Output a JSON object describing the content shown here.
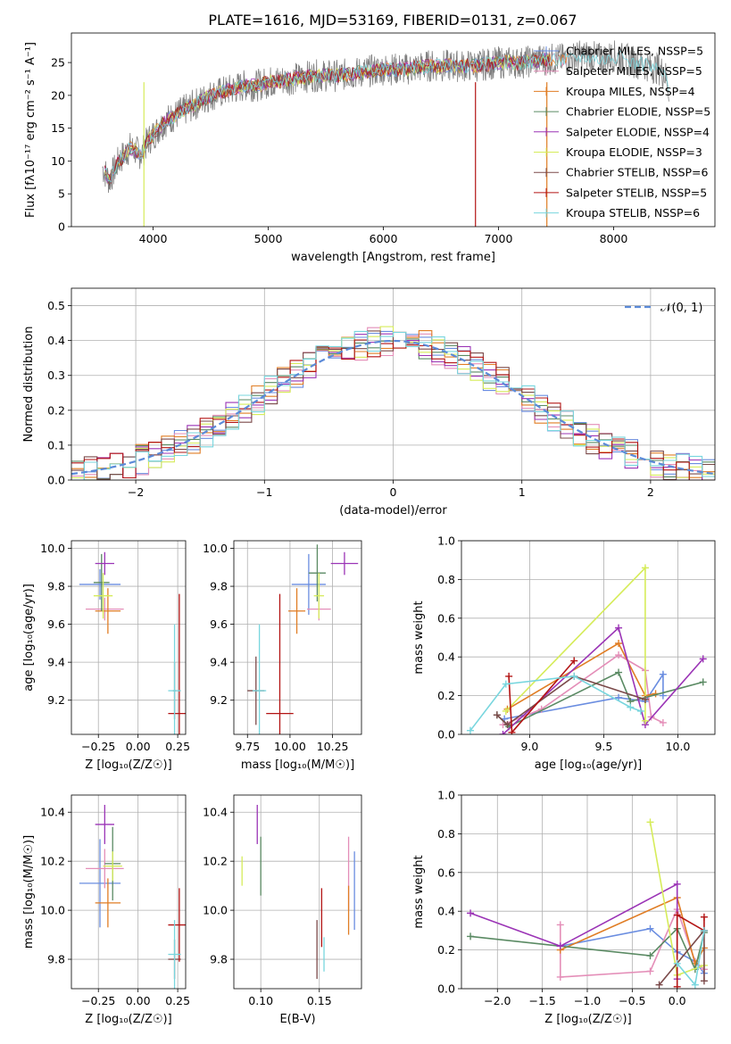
{
  "figure": {
    "title": "PLATE=1616, MJD=53169, FIBERID=0131, z=0.067"
  },
  "colors": [
    "#6a8de0",
    "#e48eb8",
    "#e07d24",
    "#5a8a63",
    "#9b34b6",
    "#d6ec5a",
    "#7b4a4a",
    "#b31414",
    "#78d6de"
  ],
  "chart_data": [
    {
      "id": "spectrum",
      "type": "line",
      "xlabel": "wavelength [Angstrom, rest frame]",
      "ylabel": "Flux [fλ10⁻¹⁷ erg cm⁻² s⁻¹ A⁻¹]",
      "xlim": [
        3290,
        8880
      ],
      "ylim": [
        0,
        29.5
      ],
      "xticks": [
        4000,
        5000,
        6000,
        7000,
        8000
      ],
      "yticks": [
        0,
        5,
        10,
        15,
        20,
        25
      ],
      "grid": false,
      "legend": "right",
      "data_series": {
        "name": "data",
        "x": [
          3560,
          3620,
          3700,
          3800,
          3900,
          3950,
          4000,
          4100,
          4200,
          4300,
          4400,
          4500,
          4600,
          4700,
          4800,
          4900,
          5000,
          5200,
          5400,
          5600,
          5800,
          6000,
          6200,
          6400,
          6600,
          6800,
          7000,
          7200,
          7400,
          7500,
          7600,
          7700,
          7800,
          7900,
          8000,
          8100,
          8200,
          8300,
          8400,
          8450,
          8480
        ],
        "y": [
          9,
          7,
          10,
          12,
          11,
          13,
          14,
          16,
          17,
          18,
          19,
          20,
          20.5,
          21,
          21.5,
          21.5,
          22,
          22.5,
          23,
          23,
          23.5,
          24,
          24,
          24.5,
          24.5,
          24.5,
          25,
          25,
          25.5,
          25.5,
          25.5,
          26,
          26,
          25.5,
          26,
          25.5,
          25,
          24.5,
          24,
          23,
          21
        ]
      },
      "series": [
        {
          "name": "Chabrier MILES, NSSP=5"
        },
        {
          "name": "Salpeter MILES, NSSP=5"
        },
        {
          "name": "Kroupa MILES, NSSP=4"
        },
        {
          "name": "Chabrier ELODIE, NSSP=5"
        },
        {
          "name": "Salpeter ELODIE, NSSP=4"
        },
        {
          "name": "Kroupa ELODIE, NSSP=3"
        },
        {
          "name": "Chabrier STELIB, NSSP=6"
        },
        {
          "name": "Salpeter STELIB, NSSP=5"
        },
        {
          "name": "Kroupa STELIB, NSSP=6"
        }
      ]
    },
    {
      "id": "residuals",
      "type": "histogram",
      "xlabel": "(data-model)/error",
      "ylabel": "Normed distribution",
      "xlim": [
        -2.5,
        2.5
      ],
      "ylim": [
        0,
        0.55
      ],
      "xticks": [
        -2,
        -1,
        0,
        1,
        2
      ],
      "yticks": [
        0.0,
        0.1,
        0.2,
        0.3,
        0.4,
        0.5
      ],
      "grid": true,
      "legend": "top-right",
      "reference": {
        "name": "𝒩(0, 1)",
        "mean": 0,
        "sd": 1
      },
      "bin_width": 0.1
    },
    {
      "id": "age_vs_Z",
      "type": "errorbar",
      "xlabel": "Z [log₁₀(Z/Z☉)]",
      "ylabel": "age  [log₁₀(age/yr)]",
      "xlim": [
        -0.42,
        0.3
      ],
      "ylim": [
        9.02,
        10.04
      ],
      "xticks": [
        -0.25,
        0.0,
        0.25
      ],
      "yticks": [
        9.2,
        9.4,
        9.6,
        9.8,
        10.0
      ],
      "grid": true,
      "points": [
        {
          "x": -0.24,
          "y": 9.81,
          "xerr": 0.13,
          "yerr": 0.08
        },
        {
          "x": -0.21,
          "y": 9.68,
          "xerr": 0.12,
          "yerr": 0.06
        },
        {
          "x": -0.19,
          "y": 9.67,
          "xerr": 0.08,
          "yerr": 0.12
        },
        {
          "x": -0.23,
          "y": 9.82,
          "xerr": 0.05,
          "yerr": 0.15
        },
        {
          "x": -0.21,
          "y": 9.92,
          "xerr": 0.06,
          "yerr": 0.06
        },
        {
          "x": -0.22,
          "y": 9.75,
          "xerr": 0.06,
          "yerr": 0.12
        },
        {
          "x": 0.23,
          "y": 9.25,
          "xerr": 0.01,
          "yerr": 0.15
        },
        {
          "x": 0.26,
          "y": 9.13,
          "xerr": 0.07,
          "yerr": 0.63
        },
        {
          "x": 0.23,
          "y": 9.25,
          "xerr": 0.04,
          "yerr": 0.35
        }
      ]
    },
    {
      "id": "age_vs_mass",
      "type": "errorbar",
      "xlabel": "mass [log₁₀(M/M☉)]",
      "ylabel": "",
      "xlim": [
        9.67,
        10.42
      ],
      "ylim": [
        9.02,
        10.04
      ],
      "xticks": [
        9.75,
        10.0,
        10.25
      ],
      "yticks": [
        9.2,
        9.4,
        9.6,
        9.8,
        10.0
      ],
      "grid": true,
      "points": [
        {
          "x": 10.11,
          "y": 9.81,
          "xerr": 0.1,
          "yerr": 0.16
        },
        {
          "x": 10.17,
          "y": 9.68,
          "xerr": 0.07,
          "yerr": 0.06
        },
        {
          "x": 10.04,
          "y": 9.67,
          "xerr": 0.05,
          "yerr": 0.12
        },
        {
          "x": 10.16,
          "y": 9.87,
          "xerr": 0.05,
          "yerr": 0.15
        },
        {
          "x": 10.32,
          "y": 9.92,
          "xerr": 0.08,
          "yerr": 0.06
        },
        {
          "x": 10.17,
          "y": 9.75,
          "xerr": 0.03,
          "yerr": 0.12
        },
        {
          "x": 9.8,
          "y": 9.25,
          "xerr": 0.05,
          "yerr": 0.18
        },
        {
          "x": 9.94,
          "y": 9.13,
          "xerr": 0.08,
          "yerr": 0.63
        },
        {
          "x": 9.82,
          "y": 9.25,
          "xerr": 0.04,
          "yerr": 0.35
        }
      ]
    },
    {
      "id": "weight_vs_age",
      "type": "line",
      "xlabel": "age  [log₁₀(age/yr)]",
      "ylabel": "mass weight",
      "xlim": [
        8.54,
        10.25
      ],
      "ylim": [
        0,
        1
      ],
      "xticks": [
        9.0,
        9.5,
        10.0
      ],
      "yticks": [
        0.0,
        0.2,
        0.4,
        0.6,
        0.8,
        1.0
      ],
      "grid": true,
      "series": [
        {
          "x": [
            8.83,
            9.6,
            9.78,
            9.9,
            9.9
          ],
          "y": [
            0.08,
            0.19,
            0.17,
            0.31,
            0.2
          ]
        },
        {
          "x": [
            8.82,
            9.08,
            9.6,
            9.78,
            9.82,
            9.9
          ],
          "y": [
            0.05,
            0.13,
            0.41,
            0.33,
            0.09,
            0.06
          ]
        },
        {
          "x": [
            8.85,
            9.6,
            9.78,
            9.85
          ],
          "y": [
            0.13,
            0.47,
            0.2,
            0.21
          ]
        },
        {
          "x": [
            8.78,
            8.86,
            9.6,
            9.68,
            10.17
          ],
          "y": [
            0.1,
            0.04,
            0.32,
            0.17,
            0.27
          ]
        },
        {
          "x": [
            8.82,
            9.6,
            9.78,
            10.17
          ],
          "y": [
            0.0,
            0.55,
            0.05,
            0.39
          ]
        },
        {
          "x": [
            8.84,
            9.78,
            9.78
          ],
          "y": [
            0.12,
            0.86,
            0.07
          ]
        },
        {
          "x": [
            8.78,
            8.85,
            9.3,
            9.78
          ],
          "y": [
            0.1,
            0.05,
            0.3,
            0.18
          ]
        },
        {
          "x": [
            8.86,
            8.88,
            9.3
          ],
          "y": [
            0.3,
            0.01,
            0.38
          ]
        },
        {
          "x": [
            8.6,
            8.84,
            9.3,
            9.68,
            9.75
          ],
          "y": [
            0.02,
            0.26,
            0.3,
            0.14,
            0.12
          ]
        }
      ]
    },
    {
      "id": "mass_vs_Z",
      "type": "errorbar",
      "xlabel": "Z [log₁₀(Z/Z☉)]",
      "ylabel": "mass [log₁₀(M/M☉)]",
      "xlim": [
        -0.42,
        0.3
      ],
      "ylim": [
        9.68,
        10.47
      ],
      "xticks": [
        -0.25,
        0.0,
        0.25
      ],
      "yticks": [
        9.8,
        10.0,
        10.2,
        10.4
      ],
      "grid": true,
      "points": [
        {
          "x": -0.24,
          "y": 10.11,
          "xerr": 0.13,
          "yerr": 0.18
        },
        {
          "x": -0.21,
          "y": 10.17,
          "xerr": 0.12,
          "yerr": 0.08
        },
        {
          "x": -0.19,
          "y": 10.03,
          "xerr": 0.08,
          "yerr": 0.1
        },
        {
          "x": -0.16,
          "y": 10.19,
          "xerr": 0.05,
          "yerr": 0.15
        },
        {
          "x": -0.21,
          "y": 10.35,
          "xerr": 0.06,
          "yerr": 0.08
        },
        {
          "x": -0.16,
          "y": 10.18,
          "xerr": 0.06,
          "yerr": 0.06
        },
        {
          "x": 0.23,
          "y": 9.8,
          "xerr": 0.04,
          "yerr": 0.08
        },
        {
          "x": 0.26,
          "y": 9.94,
          "xerr": 0.07,
          "yerr": 0.15
        },
        {
          "x": 0.23,
          "y": 9.82,
          "xerr": 0.04,
          "yerr": 0.14
        }
      ]
    },
    {
      "id": "mass_vs_ebv",
      "type": "errorbar",
      "xlabel": "E(B-V)",
      "ylabel": "",
      "xlim": [
        0.077,
        0.186
      ],
      "ylim": [
        9.68,
        10.47
      ],
      "xticks": [
        0.1,
        0.15
      ],
      "yticks": [
        9.8,
        10.0,
        10.2,
        10.4
      ],
      "grid": true,
      "points": [
        {
          "x": 0.18,
          "y": 10.08,
          "xerr": 0,
          "yerr": 0.16
        },
        {
          "x": 0.175,
          "y": 10.15,
          "xerr": 0,
          "yerr": 0.15
        },
        {
          "x": 0.175,
          "y": 10.0,
          "xerr": 0,
          "yerr": 0.1
        },
        {
          "x": 0.1,
          "y": 10.18,
          "xerr": 0,
          "yerr": 0.12
        },
        {
          "x": 0.097,
          "y": 10.35,
          "xerr": 0,
          "yerr": 0.08
        },
        {
          "x": 0.084,
          "y": 10.16,
          "xerr": 0,
          "yerr": 0.06
        },
        {
          "x": 0.148,
          "y": 9.84,
          "xerr": 0,
          "yerr": 0.12
        },
        {
          "x": 0.152,
          "y": 9.97,
          "xerr": 0,
          "yerr": 0.12
        },
        {
          "x": 0.154,
          "y": 9.82,
          "xerr": 0,
          "yerr": 0.07
        }
      ]
    },
    {
      "id": "weight_vs_Z",
      "type": "line",
      "xlabel": "Z [log₁₀(Z/Z☉)]",
      "ylabel": "mass weight",
      "xlim": [
        -2.4,
        0.42
      ],
      "ylim": [
        0,
        1
      ],
      "xticks": [
        -2.0,
        -1.5,
        -1.0,
        -0.5,
        0.0
      ],
      "yticks": [
        0.0,
        0.2,
        0.4,
        0.6,
        0.8,
        1.0
      ],
      "grid": true,
      "series": [
        {
          "x": [
            -1.3,
            -0.3,
            0.0,
            0.2,
            0.3
          ],
          "y": [
            0.22,
            0.31,
            0.19,
            0.14,
            0.08
          ]
        },
        {
          "x": [
            -1.3,
            -1.3,
            -0.3,
            0.0,
            0.2,
            0.3
          ],
          "y": [
            0.33,
            0.06,
            0.09,
            0.41,
            0.14,
            0.1
          ]
        },
        {
          "x": [
            -1.3,
            0.0,
            0.2,
            0.3
          ],
          "y": [
            0.2,
            0.47,
            0.13,
            0.21
          ]
        },
        {
          "x": [
            -2.3,
            -0.3,
            0.0,
            0.2,
            0.3
          ],
          "y": [
            0.27,
            0.17,
            0.31,
            0.1,
            0.29
          ]
        },
        {
          "x": [
            -2.3,
            -1.3,
            0.0,
            0.0
          ],
          "y": [
            0.39,
            0.22,
            0.54,
            0.05
          ]
        },
        {
          "x": [
            -0.3,
            0.0,
            0.3
          ],
          "y": [
            0.86,
            0.07,
            0.12
          ]
        },
        {
          "x": [
            -0.2,
            0.3,
            0.3
          ],
          "y": [
            0.02,
            0.3,
            0.04
          ]
        },
        {
          "x": [
            0.0,
            0.0,
            0.3,
            0.3
          ],
          "y": [
            0.01,
            0.38,
            0.3,
            0.37
          ]
        },
        {
          "x": [
            0.0,
            0.2,
            0.3
          ],
          "y": [
            0.13,
            0.02,
            0.3
          ]
        }
      ]
    }
  ]
}
